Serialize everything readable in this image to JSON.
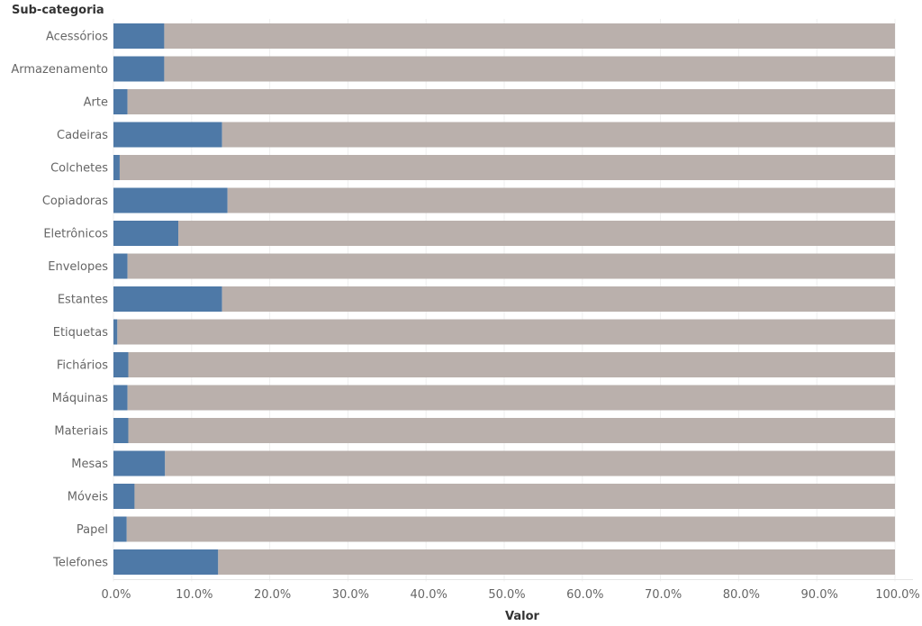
{
  "chart_data": {
    "type": "bar",
    "orientation": "horizontal",
    "stacked": true,
    "ytitle": "Sub-categoria",
    "xlabel": "Valor",
    "categories": [
      "Acessórios",
      "Armazenamento",
      "Arte",
      "Cadeiras",
      "Colchetes",
      "Copiadoras",
      "Eletrônicos",
      "Envelopes",
      "Estantes",
      "Etiquetas",
      "Fichários",
      "Máquinas",
      "Materiais",
      "Mesas",
      "Móveis",
      "Papel",
      "Telefones"
    ],
    "series": [
      {
        "values": [
          6.5,
          6.5,
          1.8,
          13.9,
          0.8,
          14.6,
          8.3,
          1.8,
          13.9,
          0.5,
          1.9,
          1.8,
          1.9,
          6.6,
          2.7,
          1.7,
          13.4
        ],
        "color": "#4e79a7"
      },
      {
        "values": [
          93.5,
          93.5,
          98.2,
          86.1,
          99.2,
          85.4,
          91.7,
          98.2,
          86.1,
          99.5,
          98.1,
          98.2,
          98.1,
          93.4,
          97.3,
          98.3,
          86.6
        ],
        "color": "#bab0ac"
      }
    ],
    "xlim": [
      0,
      100
    ],
    "xticks": [
      "0.0%",
      "10.0%",
      "20.0%",
      "30.0%",
      "40.0%",
      "50.0%",
      "60.0%",
      "70.0%",
      "80.0%",
      "90.0%",
      "100.0%"
    ],
    "grid": true,
    "legend": "none"
  }
}
